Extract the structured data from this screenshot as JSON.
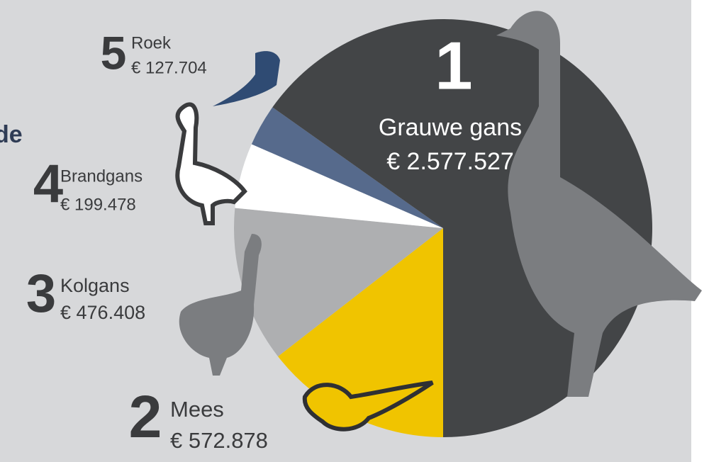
{
  "chart_data": {
    "type": "pie",
    "title": "de",
    "ranks": [
      "1",
      "2",
      "3",
      "4",
      "5"
    ],
    "categories": [
      "Grauwe gans",
      "Mees",
      "Kolgans",
      "Brandgans",
      "Roek"
    ],
    "values": [
      2577527,
      572878,
      476408,
      199478,
      127704
    ],
    "value_labels": [
      "€ 2.577.527",
      "€ 572.878",
      "€ 476.408",
      "€ 199.478",
      "€ 127.704"
    ],
    "colors": [
      "#434547",
      "#f0c400",
      "#aeafb1",
      "#ffffff",
      "#566a8c"
    ]
  }
}
